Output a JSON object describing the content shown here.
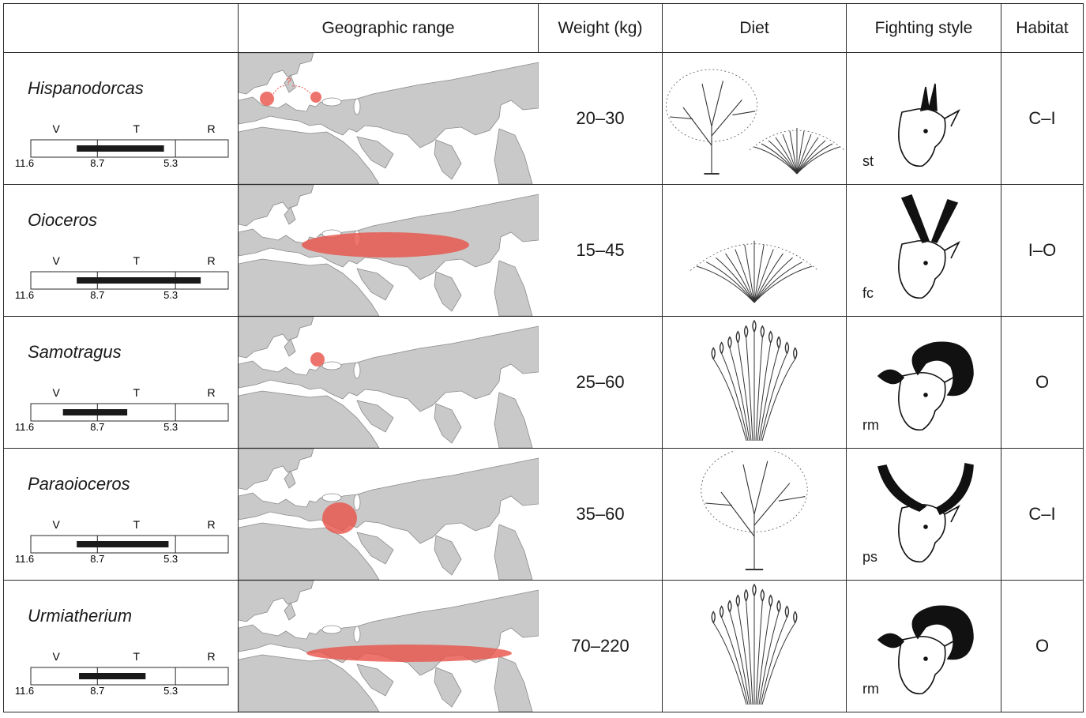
{
  "headers": {
    "taxon": "",
    "range": "Geographic range",
    "weight": "Weight (kg)",
    "diet": "Diet",
    "fighting": "Fighting style",
    "habitat": "Habitat"
  },
  "chronology": {
    "stages": [
      "V",
      "T",
      "R"
    ],
    "ticks": [
      "11.6",
      "8.7",
      "5.3"
    ],
    "scale_start_ma": 11.6,
    "scale_end_ma": 3.0
  },
  "range_colors": {
    "range_fill": "#e8554c",
    "land": "#c9c9c9",
    "sea": "#ffffff"
  },
  "taxa": [
    {
      "name": "Hispanodorcas",
      "age_ma": [
        9.6,
        5.8
      ],
      "weight": "20–30",
      "diet": [
        "tree",
        "bush"
      ],
      "fighting_code": "st",
      "fighting_icon": "goat-head-short-horns-icon",
      "habitat": "C–I",
      "range_label": "?"
    },
    {
      "name": "Oioceros",
      "age_ma": [
        9.6,
        4.2
      ],
      "weight": "15–45",
      "diet": [
        "bush"
      ],
      "fighting_code": "fc",
      "fighting_icon": "antelope-spiral-horns-icon",
      "habitat": "I–O",
      "range_label": ""
    },
    {
      "name": "Samotragus",
      "age_ma": [
        10.2,
        7.4
      ],
      "weight": "25–60",
      "diet": [
        "grass"
      ],
      "fighting_code": "rm",
      "fighting_icon": "ram-curled-horns-icon",
      "habitat": "O",
      "range_label": ""
    },
    {
      "name": "Paraoioceros",
      "age_ma": [
        9.6,
        5.6
      ],
      "weight": "35–60",
      "diet": [
        "tree"
      ],
      "fighting_code": "ps",
      "fighting_icon": "kudu-twisted-horns-icon",
      "habitat": "C–I",
      "range_label": ""
    },
    {
      "name": "Urmiatherium",
      "age_ma": [
        9.5,
        6.6
      ],
      "weight": "70–220",
      "diet": [
        "grass"
      ],
      "fighting_code": "rm",
      "fighting_icon": "ram-curled-horns-icon",
      "habitat": "O",
      "range_label": ""
    }
  ]
}
